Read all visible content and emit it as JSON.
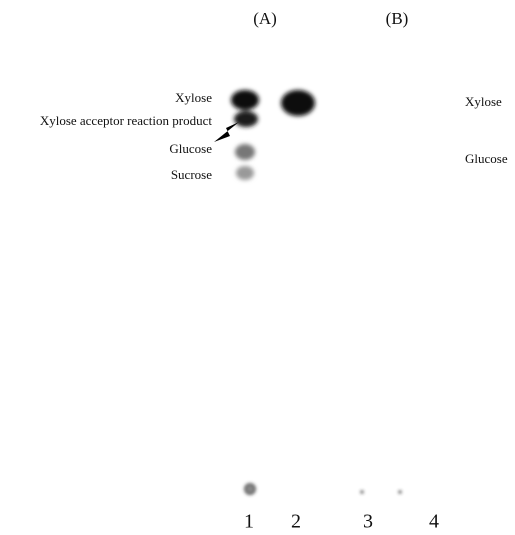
{
  "panels": [
    {
      "label": "(A)",
      "spot_labels": [
        "Xylose",
        "Xylose acceptor reaction product",
        "Glucose",
        "Sucrose"
      ]
    },
    {
      "label": "(B)",
      "spot_labels": [
        "Xylose",
        "Glucose"
      ]
    }
  ],
  "lanes": [
    "1",
    "2",
    "3",
    "4"
  ]
}
